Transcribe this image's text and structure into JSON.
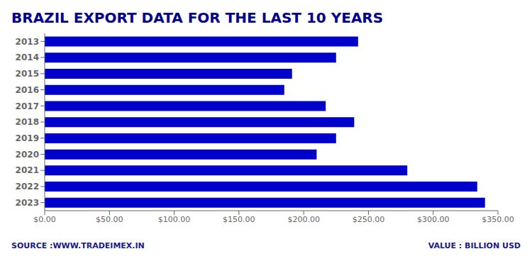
{
  "chart_data": {
    "type": "bar",
    "orientation": "horizontal",
    "title": "BRAZIL EXPORT DATA FOR THE LAST 10 YEARS",
    "categories": [
      "2013",
      "2014",
      "2015",
      "2016",
      "2017",
      "2018",
      "2019",
      "2020",
      "2021",
      "2022",
      "2023"
    ],
    "values": [
      242,
      225,
      191,
      185,
      217,
      239,
      225,
      210,
      280,
      334,
      340
    ],
    "color": "#0000CC",
    "xlim": [
      0,
      350
    ],
    "xticks": [
      {
        "value": 0,
        "label": "$0.00"
      },
      {
        "value": 50,
        "label": "$50.00"
      },
      {
        "value": 100,
        "label": "$100.00"
      },
      {
        "value": 150,
        "label": "$150.00"
      },
      {
        "value": 200,
        "label": "$200.00"
      },
      {
        "value": 250,
        "label": "$250.00"
      },
      {
        "value": 300,
        "label": "$300.00"
      },
      {
        "value": 350,
        "label": "$350.00"
      }
    ],
    "annotations": [
      "SOURCE :WWW.TRADEIMEX.IN",
      "VALUE : BILLION USD"
    ],
    "grid": false
  }
}
